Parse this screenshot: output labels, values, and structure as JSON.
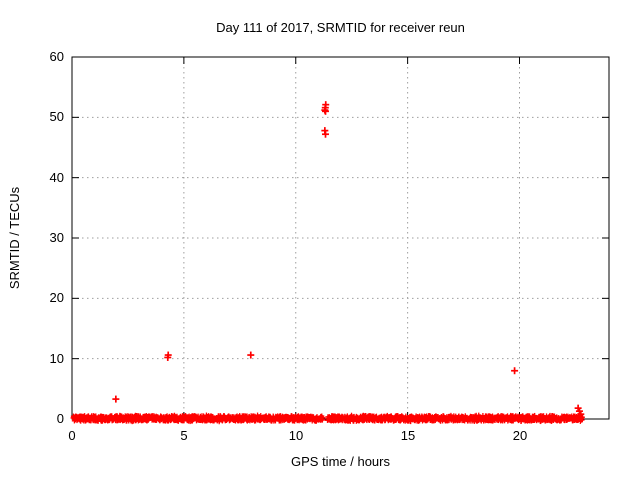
{
  "chart_data": {
    "type": "scatter",
    "title": "Day 111 of 2017, SRMTID for receiver reun",
    "xlabel": "GPS time / hours",
    "ylabel": "SRMTID / TECUs",
    "xlim": [
      0,
      24
    ],
    "ylim": [
      0,
      60
    ],
    "xticks": [
      0,
      5,
      10,
      15,
      20
    ],
    "yticks": [
      0,
      10,
      20,
      30,
      40,
      50,
      60
    ],
    "grid": true,
    "legend": "none",
    "marker": {
      "shape": "plus",
      "color": "#ff0000",
      "size": 3.5,
      "stroke_width": 1.7
    },
    "colors": {
      "border": "#000000",
      "gridline": "#9e9e9e",
      "background": "#ffffff"
    },
    "outlier_points": [
      [
        1.96,
        3.3
      ],
      [
        4.28,
        10.2
      ],
      [
        4.3,
        10.6
      ],
      [
        7.99,
        10.6
      ],
      [
        11.3,
        51.2
      ],
      [
        11.32,
        51.6
      ],
      [
        11.34,
        52.1
      ],
      [
        11.33,
        51.0
      ],
      [
        11.3,
        47.8
      ],
      [
        11.33,
        47.2
      ],
      [
        19.78,
        8.0
      ],
      [
        22.62,
        1.8
      ],
      [
        22.68,
        1.3
      ],
      [
        22.74,
        0.8
      ]
    ],
    "baseline_band": {
      "description": "dense near-zero scatter band",
      "x_start": 0.05,
      "x_end": 22.82,
      "y_center": 0.1,
      "y_spread": 0.45,
      "gaps": [
        [
          11.22,
          11.42
        ]
      ],
      "points_per_hour": 70
    }
  }
}
